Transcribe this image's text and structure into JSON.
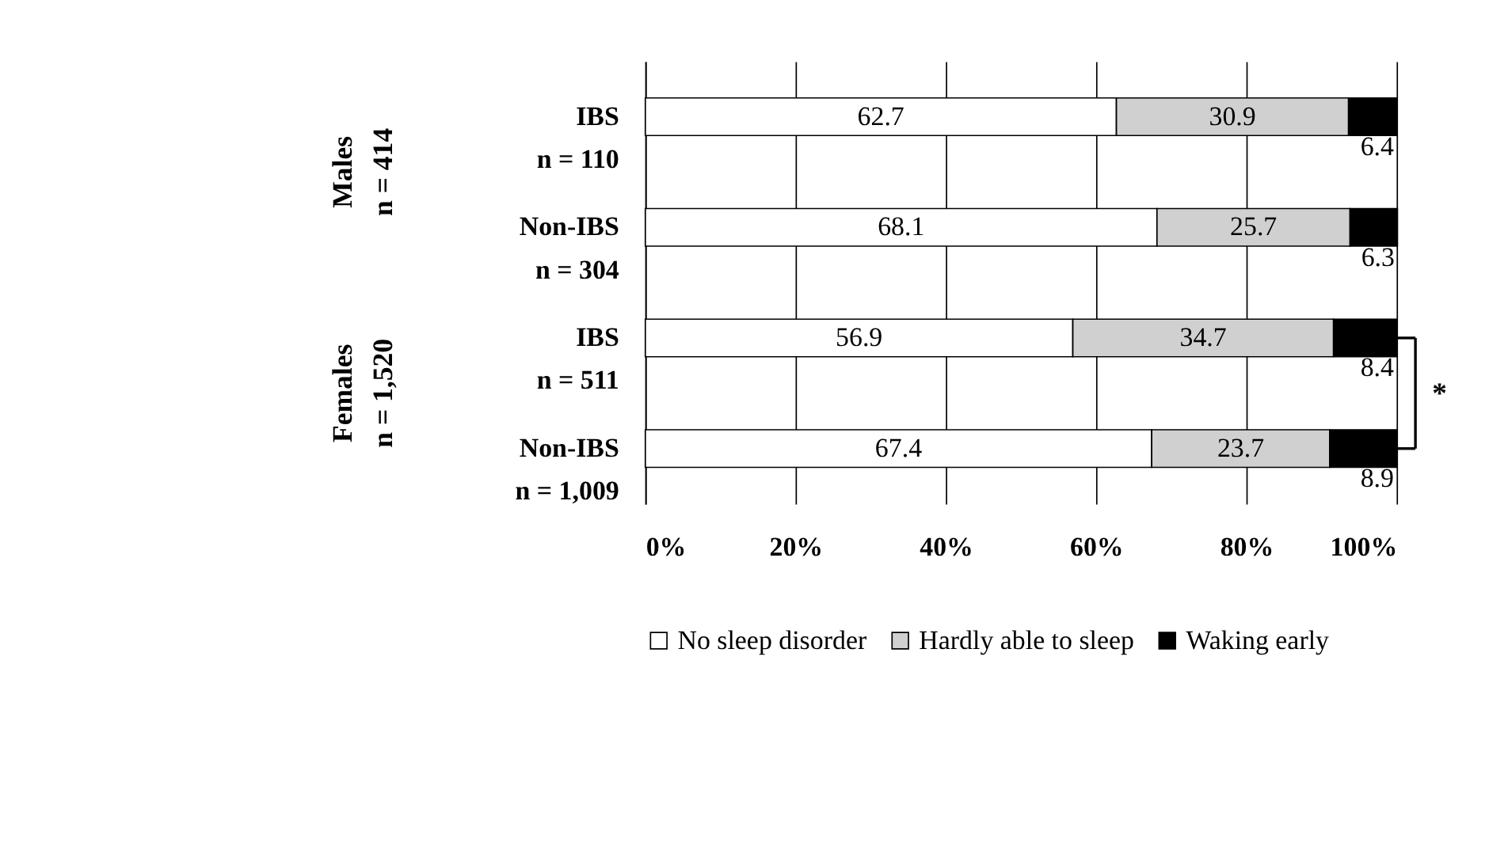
{
  "chart_data": {
    "type": "bar",
    "orientation": "horizontal",
    "stacked": true,
    "data_labels": true,
    "categories": [
      "IBS\nn = 110",
      "Non-IBS\nn = 304",
      "IBS\nn = 511",
      "Non-IBS\nn = 1,009"
    ],
    "series": [
      {
        "name": "No sleep disorder",
        "color": "#ffffff",
        "values": [
          62.7,
          68.1,
          56.9,
          67.4
        ]
      },
      {
        "name": "Hardly able to sleep",
        "color": "#d0d0d0",
        "values": [
          30.9,
          25.7,
          34.7,
          23.7
        ]
      },
      {
        "name": "Waking early",
        "color": "#000000",
        "values": [
          6.4,
          6.3,
          8.4,
          8.9
        ]
      }
    ],
    "xlim": [
      0,
      100
    ],
    "xticks": [
      {
        "value": 0,
        "label": "0%"
      },
      {
        "value": 20,
        "label": "20%"
      },
      {
        "value": 40,
        "label": "40%"
      },
      {
        "value": 60,
        "label": "60%"
      },
      {
        "value": 80,
        "label": "80%"
      },
      {
        "value": 100,
        "label": "100%"
      }
    ],
    "grid": "x",
    "legend": "bottom",
    "annotations": [
      "Males\nn = 414",
      "Females\nn = 1,520",
      "*"
    ]
  }
}
